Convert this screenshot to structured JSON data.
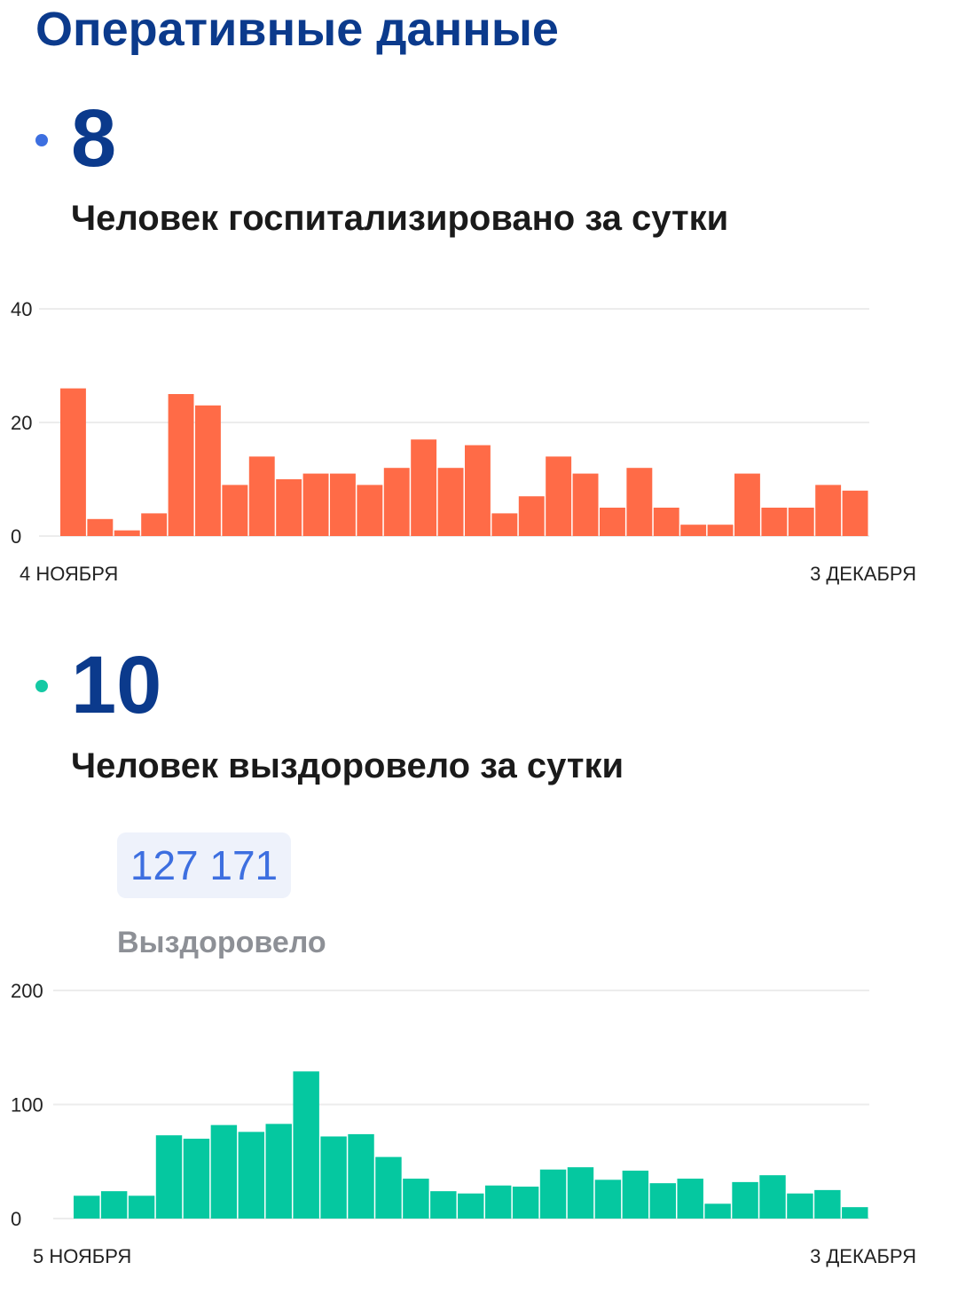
{
  "page": {
    "title": "Оперативные данные"
  },
  "hospitalized": {
    "number": "8",
    "caption": "Человек госпитализировано за сутки",
    "dot_color": "#3d6fe0"
  },
  "recovered": {
    "number": "10",
    "caption": "Человек выздоровело за сутки",
    "dot_color": "#14c9a4",
    "total_value": "127 171",
    "total_label": "Выздоровело"
  },
  "chart_data": [
    {
      "type": "bar",
      "title": "",
      "xlabel": "",
      "ylabel": "",
      "color": "#ff6b47",
      "x_start_label": "4 НОЯБРЯ",
      "x_end_label": "3 ДЕКАБРЯ",
      "yticks": [
        0,
        20,
        40
      ],
      "ylim": [
        0,
        40
      ],
      "grid": true,
      "values": [
        26,
        3,
        1,
        4,
        25,
        23,
        9,
        14,
        10,
        11,
        11,
        9,
        12,
        17,
        12,
        16,
        4,
        7,
        14,
        11,
        5,
        12,
        5,
        2,
        2,
        11,
        5,
        5,
        9,
        8
      ]
    },
    {
      "type": "bar",
      "title": "",
      "xlabel": "",
      "ylabel": "",
      "color": "#05c8a0",
      "x_start_label": "5 НОЯБРЯ",
      "x_end_label": "3 ДЕКАБРЯ",
      "yticks": [
        0,
        100,
        200
      ],
      "ylim": [
        0,
        200
      ],
      "grid": true,
      "values": [
        20,
        24,
        20,
        73,
        70,
        82,
        76,
        83,
        129,
        72,
        74,
        54,
        35,
        24,
        22,
        29,
        28,
        43,
        45,
        34,
        42,
        31,
        35,
        13,
        32,
        38,
        22,
        25,
        10
      ]
    }
  ]
}
